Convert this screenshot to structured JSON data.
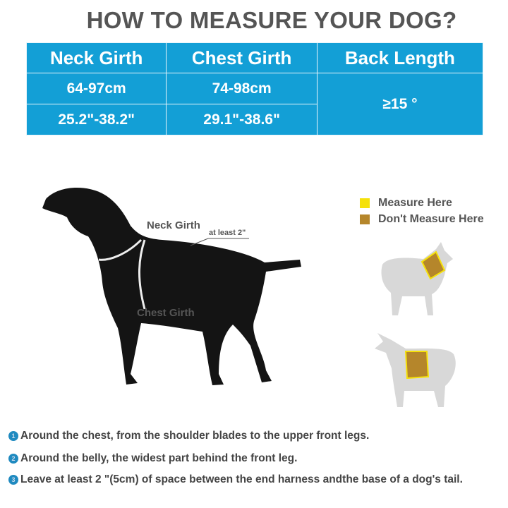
{
  "title": "HOW TO MEASURE YOUR DOG?",
  "size_table": {
    "headers": [
      "Neck Girth",
      "Chest Girth",
      "Back Length"
    ],
    "metric_row": [
      "64-97cm",
      "74-98cm"
    ],
    "imperial_row": [
      "25.2\"-38.2\"",
      "29.1\"-38.6\""
    ],
    "back_length": "≥15 °",
    "color": "#139fd6"
  },
  "diagram": {
    "neck_label": "Neck Girth",
    "gap_label": "at least 2\"",
    "chest_label": "Chest Girth"
  },
  "legend": [
    {
      "label": "Measure Here",
      "color": "#f5e10a"
    },
    {
      "label": "Don't Measure Here",
      "color": "#b5862b"
    }
  ],
  "steps": [
    {
      "number": "1",
      "text": "Around the chest, from the shoulder blades to the upper front legs."
    },
    {
      "number": "2",
      "text": "Around the belly, the widest part behind the front leg."
    },
    {
      "number": "3",
      "text": "Leave at least 2 \"(5cm) of space between the end harness andthe base of a dog's tail."
    }
  ]
}
